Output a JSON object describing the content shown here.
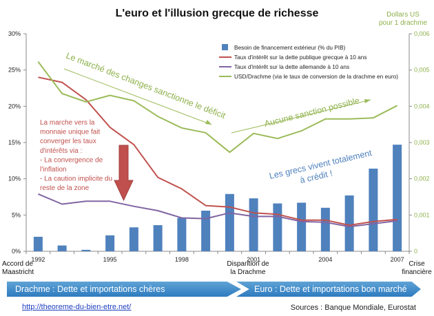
{
  "chart_data": {
    "type": "bar",
    "title": "L'euro et l'illusion grecque de richesse",
    "right_axis_title": [
      "Dollars US",
      "pour 1 drachme"
    ],
    "years": [
      1992,
      1993,
      1994,
      1995,
      1996,
      1997,
      1998,
      1999,
      2000,
      2001,
      2002,
      2003,
      2004,
      2005,
      2006,
      2007
    ],
    "y_left": {
      "min": 0,
      "max": 30,
      "ticks": [
        "0%",
        "5%",
        "10%",
        "15%",
        "20%",
        "25%",
        "30%"
      ]
    },
    "y_right": {
      "min": 0,
      "max": 0.006,
      "ticks": [
        "0",
        "0,001",
        "0,002",
        "0,003",
        "0,004",
        "0,005",
        "0,006"
      ]
    },
    "x_tick_labels": [
      {
        "year": 1992,
        "label": "1992"
      },
      {
        "year": 1995,
        "label": "1995"
      },
      {
        "year": 1998,
        "label": "1998"
      },
      {
        "year": 2001,
        "label": "2001"
      },
      {
        "year": 2004,
        "label": "2004"
      },
      {
        "year": 2007,
        "label": "2007"
      }
    ],
    "series": [
      {
        "name": "Besoin de financement extérieur (% du PIB)",
        "type": "bar",
        "axis": "left",
        "color": "#4f81bd",
        "values": [
          2.0,
          0.8,
          0.2,
          2.2,
          3.3,
          3.6,
          4.6,
          5.6,
          7.9,
          7.3,
          6.6,
          6.7,
          6.0,
          7.7,
          11.4,
          14.7
        ]
      },
      {
        "name": "Taux d'intérêt sur la dette publique grecque à 10 ans",
        "type": "line",
        "axis": "left",
        "color": "#c0504d",
        "values": [
          24.0,
          23.3,
          20.9,
          17.1,
          14.7,
          10.2,
          8.6,
          6.3,
          6.1,
          5.3,
          5.1,
          4.3,
          4.3,
          3.6,
          4.1,
          4.4
        ]
      },
      {
        "name": "Taux d'intérêt sur la dette allemande à 10 ans",
        "type": "line",
        "axis": "left",
        "color": "#8064a2",
        "values": [
          7.9,
          6.5,
          6.9,
          6.9,
          6.2,
          5.6,
          4.6,
          4.5,
          5.3,
          4.8,
          4.8,
          4.1,
          4.0,
          3.4,
          3.8,
          4.2
        ]
      },
      {
        "name": "USD/Drachme (via le taux de conversion de la drachme en euro)",
        "type": "line",
        "axis": "right",
        "color": "#9bbb59",
        "values": [
          0.00523,
          0.00435,
          0.00412,
          0.0043,
          0.00415,
          0.00372,
          0.0034,
          0.00327,
          0.00273,
          0.00325,
          0.00311,
          0.00332,
          0.00365,
          0.00365,
          0.00368,
          0.00402
        ]
      }
    ],
    "annotations": {
      "changes": "Le marché des changes sanctionne le déficit",
      "no_sanction": "Aucune sanction possible",
      "credit": [
        "Les grecs vivent totalement",
        "à crédit !"
      ],
      "convergence": [
        "La marche vers la",
        "monnaie unique fait",
        "converger les taux",
        "d'intérêts via :",
        "- La convergence de",
        "l'inflation",
        "- La caution implicite du",
        "reste de la zone"
      ]
    },
    "bottom_labels": {
      "maastricht": [
        "Accord de",
        "Maastricht"
      ],
      "drachme": [
        "Disparition de",
        "la Drachme"
      ],
      "crise": [
        "Crise",
        "financière"
      ]
    }
  },
  "bands": {
    "left": "Drachme : Dette et importations chères",
    "right": "Euro : Dette et importations bon marché"
  },
  "footer": {
    "url": "http://theoreme-du-bien-etre.net/",
    "sources": "Sources : Banque Mondiale, Eurostat"
  }
}
